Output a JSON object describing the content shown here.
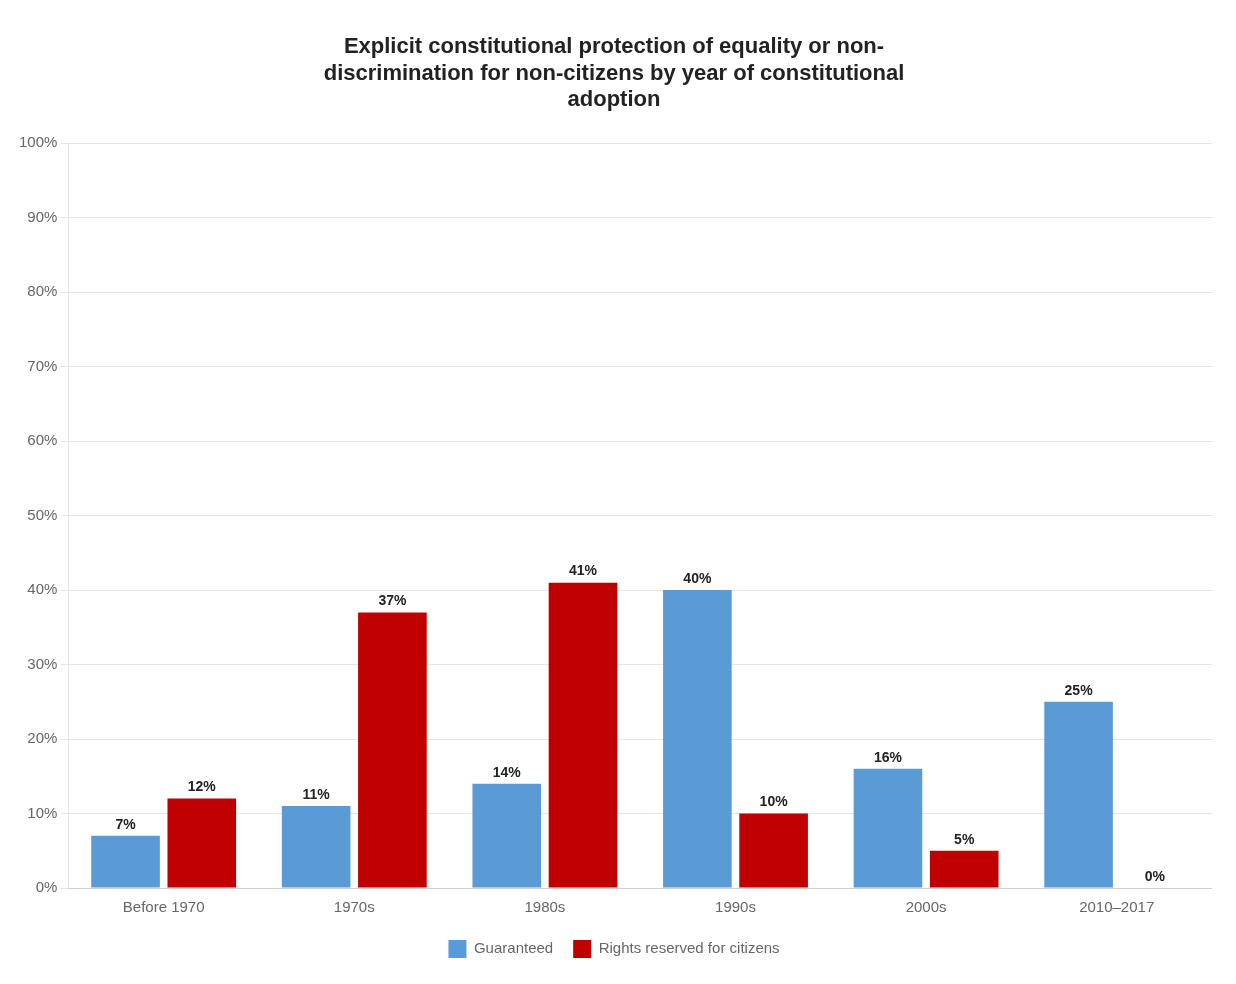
{
  "chart_data": {
    "type": "bar",
    "title": "Explicit constitutional protection of equality or non-\ndiscrimination for non-citizens by year of constitutional\nadoption",
    "categories": [
      "Before 1970",
      "1970s",
      "1980s",
      "1990s",
      "2000s",
      "2010–2017"
    ],
    "series": [
      {
        "name": "Guaranteed",
        "color": "#5B9BD5",
        "values": [
          7,
          11,
          14,
          40,
          16,
          25
        ],
        "value_labels": [
          "7%",
          "11%",
          "14%",
          "40%",
          "16%",
          "25%"
        ]
      },
      {
        "name": "Rights reserved for citizens",
        "color": "#C00000",
        "values": [
          12,
          37,
          41,
          10,
          5,
          0
        ],
        "value_labels": [
          "12%",
          "37%",
          "41%",
          "10%",
          "5%",
          "0%"
        ]
      }
    ],
    "ylim": [
      0,
      100
    ],
    "yticks": [
      {
        "value": 0,
        "label": "0%"
      },
      {
        "value": 10,
        "label": "10%"
      },
      {
        "value": 20,
        "label": "20%"
      },
      {
        "value": 30,
        "label": "30%"
      },
      {
        "value": 40,
        "label": "40%"
      },
      {
        "value": 50,
        "label": "50%"
      },
      {
        "value": 60,
        "label": "60%"
      },
      {
        "value": 70,
        "label": "70%"
      },
      {
        "value": 80,
        "label": "80%"
      },
      {
        "value": 90,
        "label": "90%"
      },
      {
        "value": 100,
        "label": "100%"
      }
    ],
    "grid": true,
    "legend": "bottom",
    "data_labels": true
  }
}
